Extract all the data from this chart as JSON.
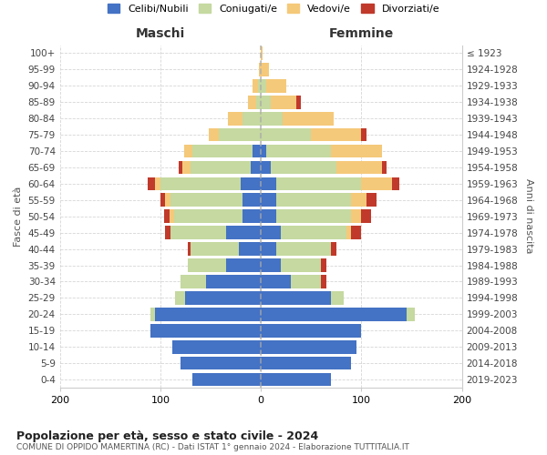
{
  "age_groups": [
    "0-4",
    "5-9",
    "10-14",
    "15-19",
    "20-24",
    "25-29",
    "30-34",
    "35-39",
    "40-44",
    "45-49",
    "50-54",
    "55-59",
    "60-64",
    "65-69",
    "70-74",
    "75-79",
    "80-84",
    "85-89",
    "90-94",
    "95-99",
    "100+"
  ],
  "birth_years": [
    "2019-2023",
    "2014-2018",
    "2009-2013",
    "2004-2008",
    "1999-2003",
    "1994-1998",
    "1989-1993",
    "1984-1988",
    "1979-1983",
    "1974-1978",
    "1969-1973",
    "1964-1968",
    "1959-1963",
    "1954-1958",
    "1949-1953",
    "1944-1948",
    "1939-1943",
    "1934-1938",
    "1929-1933",
    "1924-1928",
    "≤ 1923"
  ],
  "colors": {
    "celibi": "#4472c4",
    "coniugati": "#c5d9a0",
    "vedovi": "#f5c97a",
    "divorziati": "#c0392b",
    "background": "#ffffff",
    "grid": "#cccccc"
  },
  "maschi": {
    "celibi": [
      68,
      80,
      88,
      110,
      105,
      75,
      55,
      35,
      22,
      35,
      18,
      18,
      20,
      10,
      8,
      0,
      0,
      0,
      0,
      0,
      0
    ],
    "coniugati": [
      0,
      0,
      0,
      0,
      5,
      10,
      25,
      38,
      48,
      55,
      68,
      72,
      80,
      60,
      60,
      42,
      18,
      5,
      3,
      0,
      0
    ],
    "vedovi": [
      0,
      0,
      0,
      0,
      0,
      0,
      0,
      0,
      0,
      0,
      5,
      5,
      5,
      8,
      8,
      10,
      15,
      8,
      5,
      2,
      0
    ],
    "divorziati": [
      0,
      0,
      0,
      0,
      0,
      0,
      0,
      0,
      3,
      5,
      5,
      5,
      8,
      4,
      0,
      0,
      0,
      0,
      0,
      0,
      0
    ]
  },
  "femmine": {
    "celibi": [
      70,
      90,
      95,
      100,
      145,
      70,
      30,
      20,
      15,
      20,
      15,
      15,
      15,
      10,
      5,
      0,
      0,
      0,
      0,
      0,
      0
    ],
    "coniugati": [
      0,
      0,
      0,
      0,
      8,
      12,
      30,
      40,
      55,
      65,
      75,
      75,
      85,
      65,
      65,
      50,
      22,
      10,
      5,
      0,
      0
    ],
    "vedovi": [
      0,
      0,
      0,
      0,
      0,
      0,
      0,
      0,
      0,
      5,
      10,
      15,
      30,
      45,
      50,
      50,
      50,
      25,
      20,
      8,
      2
    ],
    "divorziati": [
      0,
      0,
      0,
      0,
      0,
      0,
      5,
      5,
      5,
      10,
      10,
      10,
      8,
      5,
      0,
      5,
      0,
      5,
      0,
      0,
      0
    ]
  },
  "title": "Popolazione per età, sesso e stato civile - 2024",
  "subtitle": "COMUNE DI OPPIDO MAMERTINA (RC) - Dati ISTAT 1° gennaio 2024 - Elaborazione TUTTITALIA.IT",
  "xlabel_maschi": "Maschi",
  "xlabel_femmine": "Femmine",
  "ylabel_left": "Fasce di età",
  "ylabel_right": "Anni di nascita",
  "xlim": 200,
  "legend_labels": [
    "Celibi/Nubili",
    "Coniugati/e",
    "Vedovi/e",
    "Divorziati/e"
  ]
}
